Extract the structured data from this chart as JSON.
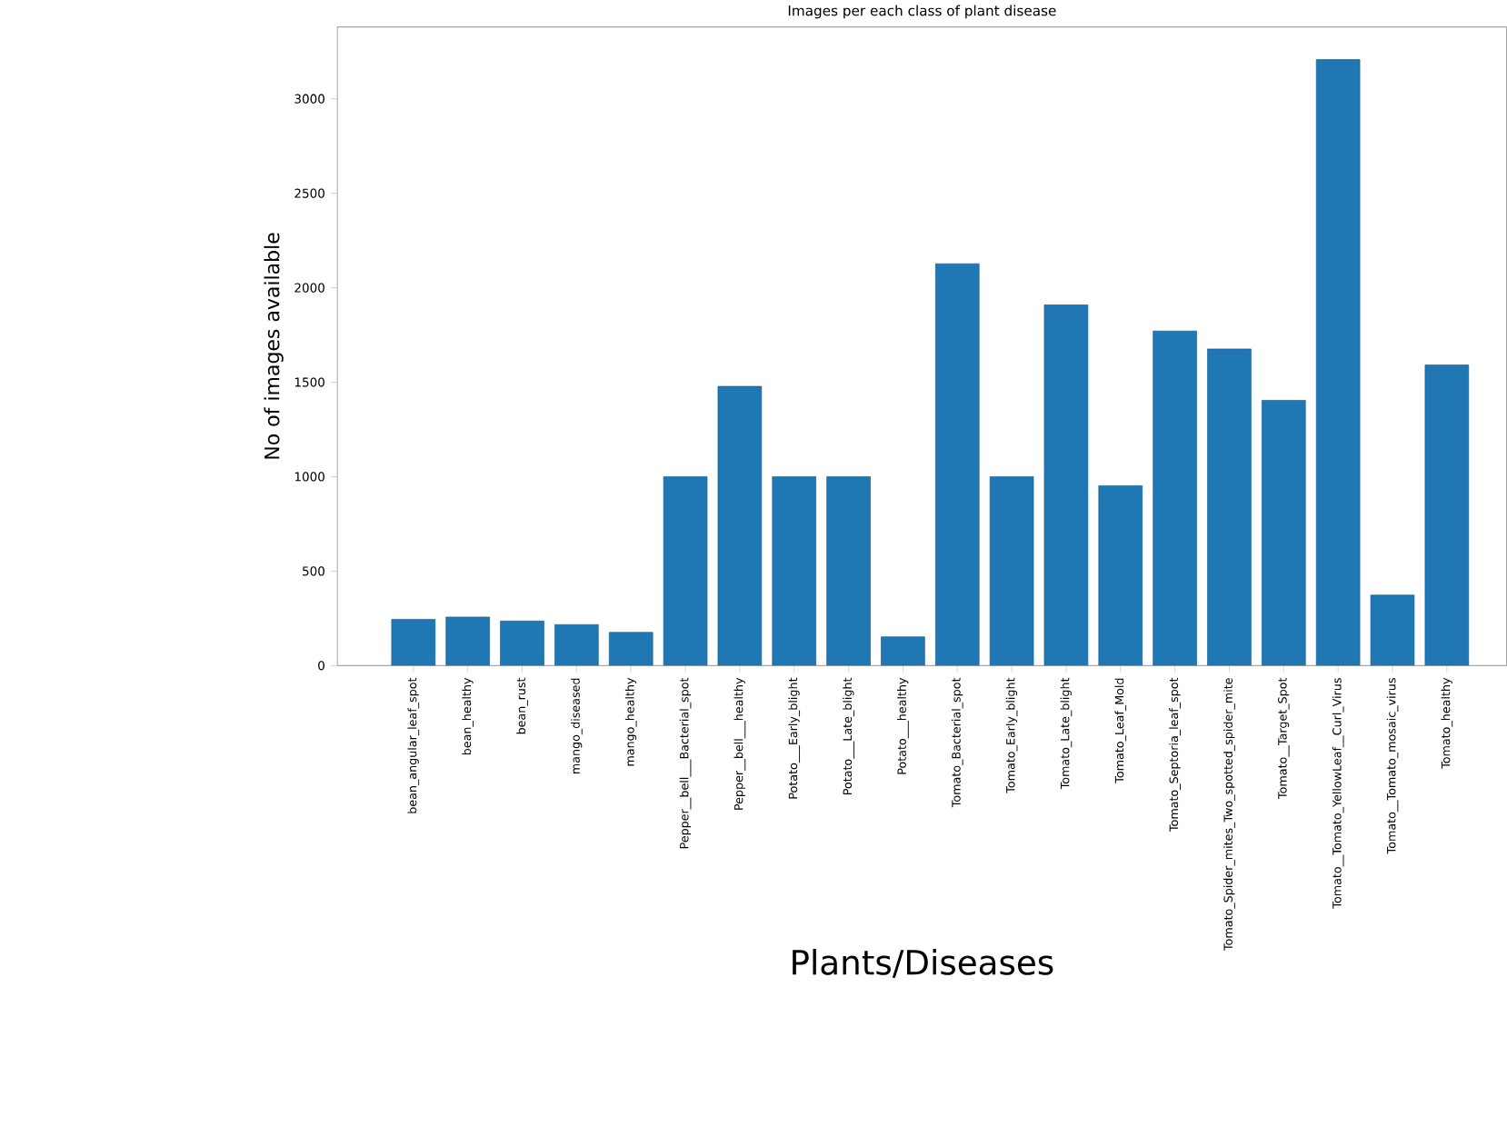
{
  "chart_data": {
    "type": "bar",
    "title": "Images per each class of plant disease",
    "xlabel": "Plants/Diseases",
    "ylabel": "No of images available",
    "categories": [
      "bean_angular_leaf_spot",
      "bean_healthy",
      "bean_rust",
      "mango_diseased",
      "mango_healthy",
      "Pepper__bell___Bacterial_spot",
      "Pepper__bell___healthy",
      "Potato___Early_blight",
      "Potato___Late_blight",
      "Potato___healthy",
      "Tomato_Bacterial_spot",
      "Tomato_Early_blight",
      "Tomato_Late_blight",
      "Tomato_Leaf_Mold",
      "Tomato_Septoria_leaf_spot",
      "Tomato_Spider_mites_Two_spotted_spider_mite",
      "Tomato__Target_Spot",
      "Tomato__Tomato_YellowLeaf__Curl_Virus",
      "Tomato__Tomato_mosaic_virus",
      "Tomato_healthy"
    ],
    "values": [
      245,
      257,
      236,
      217,
      176,
      1000,
      1478,
      1000,
      1000,
      152,
      2127,
      1000,
      1909,
      952,
      1771,
      1676,
      1404,
      3208,
      373,
      1591
    ],
    "color": "#1f77b4",
    "ylim": [
      0,
      3380
    ],
    "yticks": [
      0,
      500,
      1000,
      1500,
      2000,
      2500,
      3000
    ],
    "grid": false
  }
}
